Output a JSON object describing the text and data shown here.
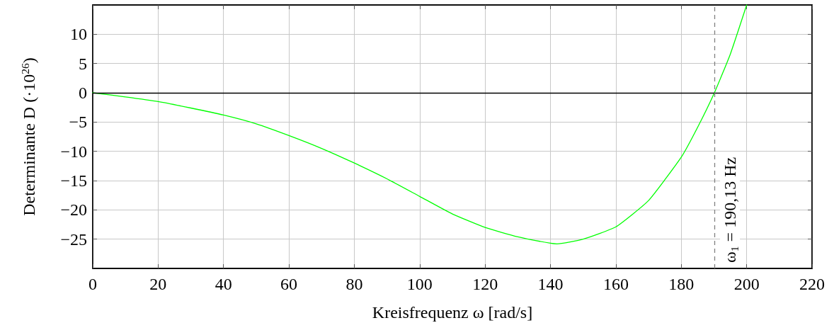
{
  "chart_data": {
    "type": "line",
    "xlabel": "Kreisfrequenz ω [rad/s]",
    "ylabel": "Determinante D (·10$^{26}$)",
    "x": [
      0,
      10,
      20,
      30,
      40,
      50,
      60,
      70,
      80,
      90,
      100,
      110,
      120,
      130,
      140,
      142,
      150,
      160,
      170,
      180,
      185,
      190.13,
      195,
      200
    ],
    "series": [
      {
        "color": "#00ff00",
        "values": [
          0,
          -0.7,
          -1.5,
          -2.6,
          -3.8,
          -5.3,
          -7.3,
          -9.5,
          -12.0,
          -14.7,
          -17.7,
          -20.7,
          -23.0,
          -24.6,
          -25.7,
          -25.8,
          -25.0,
          -22.9,
          -18.4,
          -11.0,
          -5.9,
          0,
          6.6,
          15.0
        ]
      }
    ],
    "xlim": [
      0,
      220
    ],
    "xticks": [
      0,
      20,
      40,
      60,
      80,
      100,
      120,
      140,
      160,
      180,
      200,
      220
    ],
    "ylim": [
      -30,
      15
    ],
    "yticks": [
      -25,
      -20,
      -15,
      -10,
      -5,
      0,
      5,
      10
    ],
    "grid": true,
    "marker": "none",
    "line_style": "solid",
    "ref_lines": [
      {
        "axis": "y",
        "value": 0,
        "color": "#000000",
        "line_style": "solid"
      },
      {
        "axis": "x",
        "value": 190.13,
        "label": "ω$_{1}$ = 190,13 Hz",
        "color": "#808080",
        "line_style": "dashed"
      }
    ]
  }
}
